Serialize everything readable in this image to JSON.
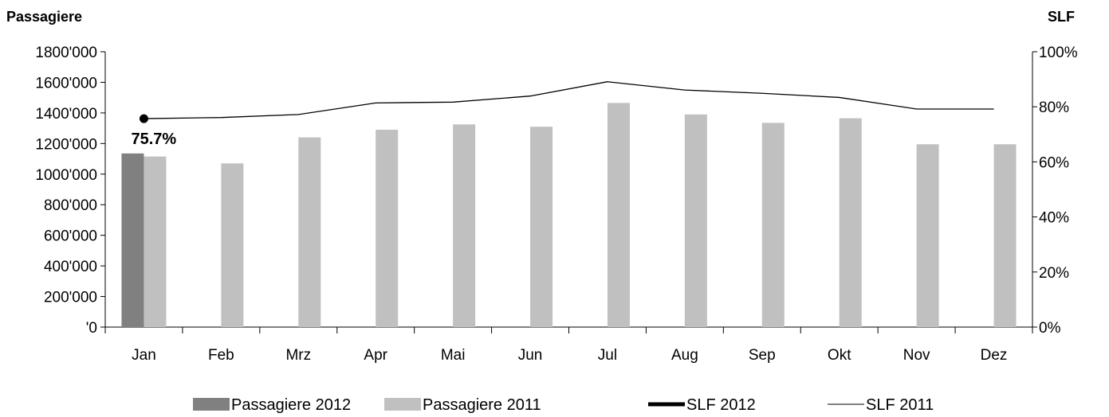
{
  "chart_data": {
    "type": "bar",
    "title": "",
    "y_left_label": "Passagiere",
    "y_right_label": "SLF",
    "categories": [
      "Jan",
      "Feb",
      "Mrz",
      "Apr",
      "Mai",
      "Jun",
      "Jul",
      "Aug",
      "Sep",
      "Okt",
      "Nov",
      "Dez"
    ],
    "ylim_left": [
      0,
      1800000
    ],
    "ylim_right": [
      0,
      1.0
    ],
    "y_left_ticks": [
      "'0",
      "200'000",
      "400'000",
      "600'000",
      "800'000",
      "1000'000",
      "1200'000",
      "1400'000",
      "1600'000",
      "1800'000"
    ],
    "y_right_ticks": [
      "0%",
      "20%",
      "40%",
      "60%",
      "80%",
      "100%"
    ],
    "grid": false,
    "legend_position": "bottom",
    "series": [
      {
        "name": "Passagiere 2012",
        "kind": "bar",
        "axis": "left",
        "color": "#808080",
        "values": [
          1135000,
          null,
          null,
          null,
          null,
          null,
          null,
          null,
          null,
          null,
          null,
          null
        ]
      },
      {
        "name": "Passagiere 2011",
        "kind": "bar",
        "axis": "left",
        "color": "#c0c0c0",
        "values": [
          1115000,
          1070000,
          1240000,
          1290000,
          1325000,
          1310000,
          1465000,
          1390000,
          1335000,
          1365000,
          1195000,
          1195000
        ]
      },
      {
        "name": "SLF 2012",
        "kind": "line",
        "axis": "right",
        "color": "#000000",
        "values": [
          0.757,
          null,
          null,
          null,
          null,
          null,
          null,
          null,
          null,
          null,
          null,
          null
        ]
      },
      {
        "name": "SLF 2011",
        "kind": "line",
        "axis": "right",
        "color": "#000000",
        "values": [
          0.757,
          0.761,
          0.772,
          0.814,
          0.817,
          0.839,
          0.891,
          0.861,
          0.849,
          0.834,
          0.792,
          0.792
        ]
      }
    ],
    "annotations": [
      {
        "series": "SLF 2012",
        "category": "Jan",
        "text": "75.7%"
      }
    ]
  }
}
